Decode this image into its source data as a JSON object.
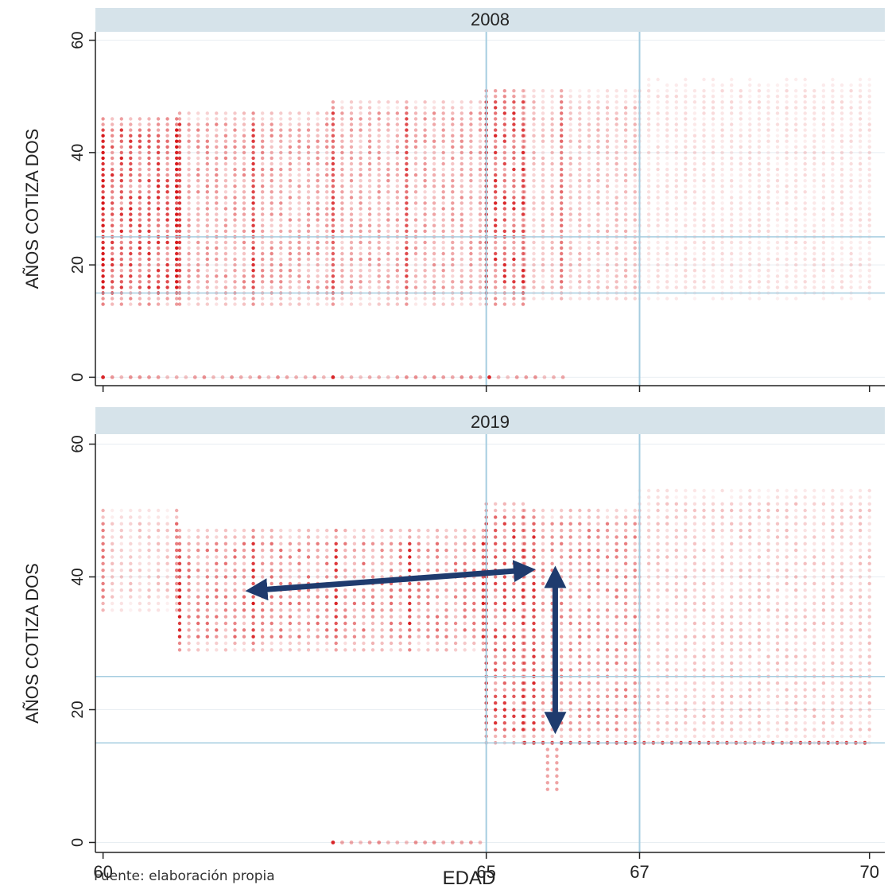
{
  "chart_data": {
    "type": "scatter",
    "xlabel": "EDAD",
    "x_ticks": [
      60,
      65,
      67,
      70
    ],
    "xlim": [
      59.9,
      70.2
    ],
    "ylabel": "AÑOS COTIZA DOS",
    "y_ticks": [
      0,
      20,
      40,
      60
    ],
    "ylim": [
      -1.5,
      61.5
    ],
    "grid": "horizontal",
    "reference_lines": {
      "x": [
        65,
        67
      ],
      "y": [
        15,
        25
      ]
    },
    "colors": {
      "points": "#d7191c",
      "reference": "#a6cde0",
      "grid": "#e8eef2",
      "panel_header": "#d6e3ea",
      "arrow": "#1f3b6e"
    },
    "panels": [
      {
        "title": "2008",
        "description": "Dense column of observations at ages 60-67 with contribution years ~13-47; heaviest density at ages 60-61 and at 65; zero-contribution row at y=0 up to age ~66.",
        "bands": [
          {
            "x_range": [
              60,
              61.0
            ],
            "y_range": [
              13,
              46
            ],
            "density": 0.95
          },
          {
            "x_range": [
              61.0,
              63.0
            ],
            "y_range": [
              13,
              47
            ],
            "density": 0.55
          },
          {
            "x_range": [
              63.0,
              65.0
            ],
            "y_range": [
              13,
              49
            ],
            "density": 0.5
          },
          {
            "x_range": [
              65.0,
              65.5
            ],
            "y_range": [
              13,
              51
            ],
            "density": 0.95
          },
          {
            "x_range": [
              65.5,
              67.0
            ],
            "y_range": [
              14,
              51
            ],
            "density": 0.35
          },
          {
            "x_range": [
              67.0,
              70.0
            ],
            "y_range": [
              14,
              53
            ],
            "density": 0.18
          }
        ],
        "strong_columns": [
          60.0,
          61.0,
          62.0,
          63.0,
          64.0,
          65.0,
          66.0
        ],
        "zero_row_x": [
          60,
          66.0
        ]
      },
      {
        "title": "2019",
        "description": "Early retirement mass shifted toward higher contribution years (~29-47); from age 65 the distribution extends down to ~15 years, with a strong horizontal band at 15 years for ages 65.5-70.",
        "bands": [
          {
            "x_range": [
              60,
              61.0
            ],
            "y_range": [
              35,
              50
            ],
            "density": 0.3
          },
          {
            "x_range": [
              61.0,
              65.0
            ],
            "y_range": [
              29,
              47
            ],
            "density": 0.65
          },
          {
            "x_range": [
              65.0,
              65.5
            ],
            "y_range": [
              15,
              51
            ],
            "density": 0.9
          },
          {
            "x_range": [
              65.5,
              67.0
            ],
            "y_range": [
              15,
              50
            ],
            "density": 0.6
          },
          {
            "x_range": [
              67.0,
              70.0
            ],
            "y_range": [
              15,
              53
            ],
            "density": 0.3
          }
        ],
        "strong_columns": [
          60.0,
          61.0,
          62.0,
          63.0,
          64.0,
          65.0,
          65.6
        ],
        "horizontal_band_y": 15,
        "zero_row_x": [
          63.0,
          65.0
        ],
        "annotations": [
          {
            "type": "double-arrow",
            "from": [
              62.0,
              38.0
            ],
            "to": [
              65.5,
              41.0
            ]
          },
          {
            "type": "double-arrow",
            "from": [
              65.9,
              40.0
            ],
            "to": [
              65.9,
              18.0
            ]
          }
        ]
      }
    ]
  },
  "source_note": "Fuente: elaboración propia"
}
